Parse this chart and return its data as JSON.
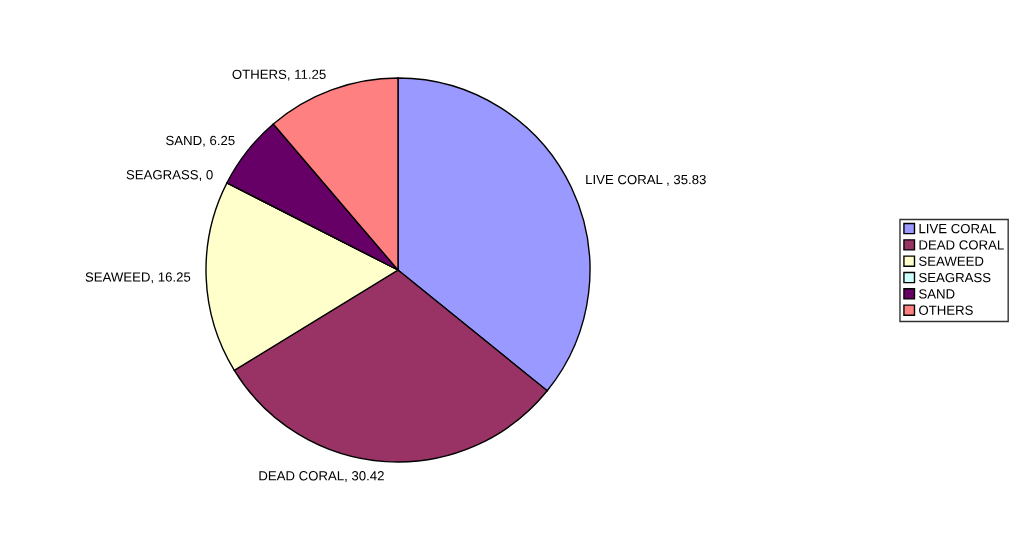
{
  "chart_data": {
    "type": "pie",
    "categories": [
      "LIVE CORAL",
      "DEAD CORAL",
      "SEAWEED",
      "SEAGRASS",
      "SAND",
      "OTHERS"
    ],
    "values": [
      35.83,
      30.42,
      16.25,
      0,
      6.25,
      11.25
    ],
    "colors": [
      "#9999ff",
      "#993366",
      "#ffffcc",
      "#ccffff",
      "#660066",
      "#ff8080"
    ],
    "value_labels": [
      "LIVE CORAL , 35.83",
      "DEAD CORAL, 30.42",
      "SEAWEED, 16.25",
      "SEAGRASS, 0",
      "SAND, 6.25",
      "OTHERS, 11.25"
    ],
    "legend": "right"
  }
}
